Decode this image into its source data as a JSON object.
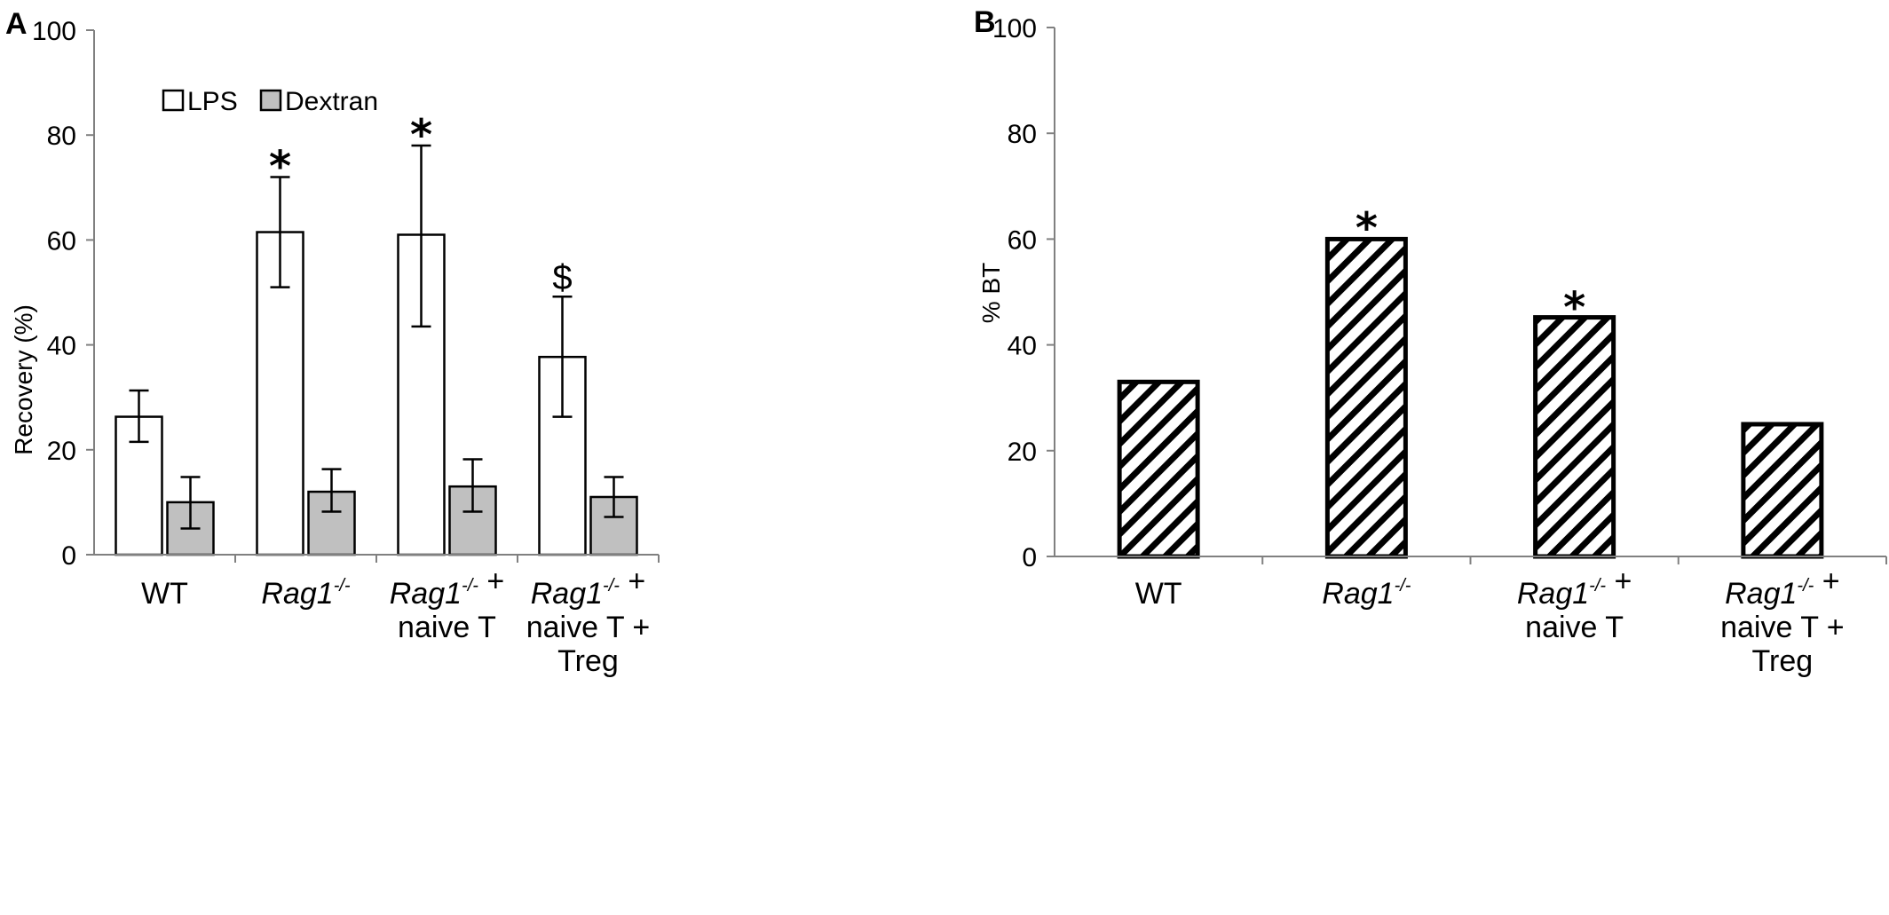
{
  "chart_data": [
    {
      "panel": "A",
      "type": "bar",
      "ylabel": "Recovery (%)",
      "ylim": [
        0,
        100
      ],
      "yticks": [
        "0",
        "20",
        "40",
        "60",
        "80",
        "100"
      ],
      "categories": [
        {
          "lines": [
            {
              "parts": [
                {
                  "text": "WT",
                  "italic": false
                }
              ]
            }
          ]
        },
        {
          "lines": [
            {
              "parts": [
                {
                  "text": "Rag1",
                  "italic": true
                },
                {
                  "text": "-/-",
                  "italic": true,
                  "sup": true
                }
              ]
            }
          ]
        },
        {
          "lines": [
            {
              "parts": [
                {
                  "text": "Rag1",
                  "italic": true
                },
                {
                  "text": "-/-",
                  "italic": true,
                  "sup": true
                },
                {
                  "text": " +",
                  "italic": false
                }
              ]
            },
            {
              "parts": [
                {
                  "text": "naive T",
                  "italic": false
                }
              ]
            }
          ]
        },
        {
          "lines": [
            {
              "parts": [
                {
                  "text": "Rag1",
                  "italic": true
                },
                {
                  "text": "-/-",
                  "italic": true,
                  "sup": true
                },
                {
                  "text": " +",
                  "italic": false
                }
              ]
            },
            {
              "parts": [
                {
                  "text": "naive T +",
                  "italic": false
                }
              ]
            },
            {
              "parts": [
                {
                  "text": "Treg",
                  "italic": false
                }
              ]
            }
          ]
        }
      ],
      "series": [
        {
          "name": "LPS",
          "fill": "#ffffff",
          "values": [
            26.3,
            61.5,
            61.0,
            37.7
          ],
          "err_low": [
            21.5,
            51.0,
            43.5,
            26.3
          ],
          "err_high": [
            31.3,
            72.0,
            78.0,
            49.2
          ]
        },
        {
          "name": "Dextran",
          "fill": "#c0c0c0",
          "values": [
            10.0,
            12.0,
            13.0,
            11.0
          ],
          "err_low": [
            5.0,
            8.2,
            8.2,
            7.2
          ],
          "err_high": [
            14.8,
            16.3,
            18.2,
            14.8
          ]
        }
      ],
      "annotations": [
        {
          "category": 1,
          "text": "*",
          "y": 76
        },
        {
          "category": 2,
          "text": "*",
          "y": 82
        },
        {
          "category": 3,
          "text": "$",
          "y": 53
        }
      ],
      "legend": "top-left",
      "grid": false
    },
    {
      "panel": "B",
      "type": "bar",
      "ylabel": "% BT",
      "ylim": [
        0,
        100
      ],
      "yticks": [
        "0",
        "20",
        "40",
        "60",
        "80",
        "100"
      ],
      "categories": [
        {
          "lines": [
            {
              "parts": [
                {
                  "text": "WT",
                  "italic": false
                }
              ]
            }
          ]
        },
        {
          "lines": [
            {
              "parts": [
                {
                  "text": "Rag1",
                  "italic": true
                },
                {
                  "text": "-/-",
                  "italic": true,
                  "sup": true
                }
              ]
            }
          ]
        },
        {
          "lines": [
            {
              "parts": [
                {
                  "text": "Rag1",
                  "italic": true
                },
                {
                  "text": "-/-",
                  "italic": true,
                  "sup": true
                },
                {
                  "text": " +",
                  "italic": false
                }
              ]
            },
            {
              "parts": [
                {
                  "text": "naive T",
                  "italic": false
                }
              ]
            }
          ]
        },
        {
          "lines": [
            {
              "parts": [
                {
                  "text": "Rag1",
                  "italic": true
                },
                {
                  "text": "-/-",
                  "italic": true,
                  "sup": true
                },
                {
                  "text": " +",
                  "italic": false
                }
              ]
            },
            {
              "parts": [
                {
                  "text": "naive T +",
                  "italic": false
                }
              ]
            },
            {
              "parts": [
                {
                  "text": "Treg",
                  "italic": false
                }
              ]
            }
          ]
        }
      ],
      "values": [
        33.0,
        60.0,
        45.2,
        25.0
      ],
      "pattern": "diagonal-hatch",
      "annotations": [
        {
          "category": 1,
          "text": "*",
          "y": 64
        },
        {
          "category": 2,
          "text": "*",
          "y": 49
        }
      ],
      "grid": false
    }
  ]
}
